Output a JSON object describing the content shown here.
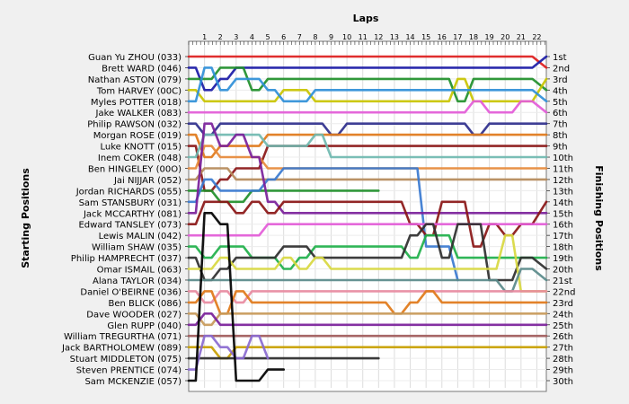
{
  "chart_data": {
    "type": "line",
    "title": "Laps",
    "ylabel_left": "Starting Positions",
    "ylabel_right": "Finishing Positions",
    "laps": [
      "1",
      "2",
      "3",
      "4",
      "5",
      "6",
      "7",
      "8",
      "9",
      "10",
      "11",
      "12",
      "13",
      "14",
      "15",
      "16",
      "17",
      "18",
      "19",
      "20",
      "21",
      "22"
    ],
    "positions": [
      "1st",
      "2nd",
      "3rd",
      "4th",
      "5th",
      "6th",
      "7th",
      "8th",
      "9th",
      "10th",
      "11th",
      "12th",
      "13th",
      "14th",
      "15th",
      "16th",
      "17th",
      "18th",
      "19th",
      "20th",
      "21st",
      "22nd",
      "23rd",
      "24th",
      "25th",
      "26th",
      "27th",
      "28th",
      "29th",
      "30th"
    ],
    "ylim": [
      1,
      30
    ],
    "grid": true,
    "series": [
      {
        "name": "Guan Yu ZHOU (033)",
        "color": "#dd1c1c",
        "values": [
          1,
          1,
          1,
          1,
          1,
          1,
          1,
          1,
          1,
          1,
          1,
          1,
          1,
          1,
          1,
          1,
          1,
          1,
          1,
          1,
          1,
          1,
          2
        ]
      },
      {
        "name": "Brett WARD (046)",
        "color": "#1a1aa6",
        "values": [
          2,
          4,
          3,
          2,
          2,
          2,
          2,
          2,
          2,
          2,
          2,
          2,
          2,
          2,
          2,
          2,
          2,
          2,
          2,
          2,
          2,
          2,
          1
        ]
      },
      {
        "name": "Nathan ASTON (079)",
        "color": "#1f8f2a",
        "values": [
          3,
          3,
          2,
          2,
          4,
          3,
          3,
          3,
          3,
          3,
          3,
          3,
          3,
          3,
          3,
          3,
          3,
          5,
          3,
          3,
          3,
          3,
          4
        ]
      },
      {
        "name": "Tom HARVEY (00C)",
        "color": "#c9c400",
        "values": [
          4,
          5,
          5,
          5,
          5,
          5,
          4,
          4,
          5,
          5,
          5,
          5,
          5,
          5,
          5,
          5,
          5,
          3,
          5,
          5,
          5,
          5,
          3
        ]
      },
      {
        "name": "Myles POTTER (018)",
        "color": "#2f8fd8",
        "values": [
          5,
          2,
          4,
          3,
          3,
          4,
          5,
          5,
          4,
          4,
          4,
          4,
          4,
          4,
          4,
          4,
          4,
          4,
          4,
          4,
          4,
          4,
          5
        ]
      },
      {
        "name": "Jake WALKER (083)",
        "color": "#e35bd8",
        "values": [
          6,
          6,
          6,
          6,
          6,
          6,
          6,
          6,
          6,
          6,
          6,
          6,
          6,
          6,
          6,
          6,
          6,
          6,
          5,
          6,
          6,
          5,
          6
        ]
      },
      {
        "name": "Philip RAWSON (032)",
        "color": "#2e2e8c",
        "values": [
          7,
          8,
          7,
          7,
          7,
          7,
          7,
          7,
          7,
          8,
          7,
          7,
          7,
          7,
          7,
          7,
          7,
          7,
          8,
          7,
          7,
          7,
          7
        ]
      },
      {
        "name": "Morgan ROSE (019)",
        "color": "#e07818",
        "values": [
          8,
          10,
          9,
          9,
          9,
          8,
          8,
          8,
          8,
          8,
          8,
          8,
          8,
          8,
          8,
          8,
          8,
          8,
          8,
          8,
          8,
          8,
          8
        ]
      },
      {
        "name": "Luke KNOTT (015)",
        "color": "#8a1515",
        "values": [
          9,
          13,
          12,
          11,
          11,
          9,
          9,
          9,
          9,
          9,
          9,
          9,
          9,
          9,
          9,
          9,
          9,
          9,
          9,
          9,
          9,
          9,
          9
        ]
      },
      {
        "name": "Inem COKER (048)",
        "color": "#6fb8b0",
        "values": [
          10,
          8,
          8,
          8,
          8,
          9,
          9,
          9,
          8,
          10,
          10,
          10,
          10,
          10,
          10,
          10,
          10,
          10,
          10,
          10,
          10,
          10,
          10
        ]
      },
      {
        "name": "Ben HINGELEY (00O)",
        "color": "#e78a3a",
        "values": [
          11,
          9,
          10,
          10,
          10,
          11,
          11,
          11,
          11,
          11,
          11,
          11,
          11,
          11,
          11,
          11,
          11,
          11,
          11,
          11,
          11,
          11,
          11
        ]
      },
      {
        "name": "Jai NIJJAR (052)",
        "color": "#b58a5a",
        "values": [
          12,
          11,
          11,
          12,
          12,
          12,
          12,
          12,
          12,
          12,
          12,
          12,
          12,
          12,
          12,
          12,
          12,
          12,
          12,
          12,
          12,
          12,
          12
        ]
      },
      {
        "name": "Jordan RICHARDS (055)",
        "color": "#1f8f2a",
        "values": [
          13,
          13,
          14,
          14,
          13,
          13,
          13,
          13,
          13,
          13,
          13,
          13,
          13
        ]
      },
      {
        "name": "Sam STANSBURY (031)",
        "color": "#3a7ad0",
        "values": [
          14,
          12,
          13,
          13,
          13,
          12,
          11,
          11,
          11,
          11,
          11,
          11,
          11,
          11,
          11,
          18,
          18,
          21
        ]
      },
      {
        "name": "Jack MCCARTHY (081)",
        "color": "#7a1f9a",
        "values": [
          15,
          7,
          9,
          8,
          10,
          14,
          15,
          15,
          15,
          15,
          15,
          15,
          15,
          15,
          15,
          15,
          15,
          15,
          15,
          15,
          15,
          15,
          15
        ]
      },
      {
        "name": "Edward TANSLEY (073)",
        "color": "#8a1515",
        "values": [
          16,
          14,
          14,
          15,
          14,
          15,
          14,
          14,
          14,
          14,
          14,
          14,
          14,
          14,
          16,
          17,
          14,
          14,
          18,
          16,
          17,
          16,
          14
        ]
      },
      {
        "name": "Lewis MALIN (042)",
        "color": "#e35bd8",
        "values": [
          17,
          17,
          17,
          17,
          17,
          16,
          16,
          16,
          16,
          16,
          16,
          16,
          16,
          16,
          16,
          16,
          16,
          16,
          16,
          16,
          16,
          16,
          16
        ]
      },
      {
        "name": "William SHAW (035)",
        "color": "#1fb04a",
        "values": [
          18,
          19,
          18,
          18,
          19,
          19,
          20,
          19,
          18,
          18,
          18,
          18,
          18,
          18,
          19,
          17,
          17,
          19,
          19,
          19,
          19,
          19,
          19
        ]
      },
      {
        "name": "Philip HAMPRECHT (037)",
        "color": "#2e2e2e",
        "values": [
          19,
          21,
          20,
          19,
          19,
          19,
          18,
          18,
          19,
          19,
          19,
          19,
          19,
          19,
          17,
          16,
          19,
          16,
          16,
          21,
          21,
          19,
          20
        ]
      },
      {
        "name": "Omar ISMAIL (063)",
        "color": "#d8d840",
        "values": [
          20,
          20,
          19,
          20,
          20,
          20,
          19,
          20,
          19,
          20,
          20,
          20,
          20,
          20,
          20,
          20,
          20,
          20,
          20,
          20,
          17,
          22,
          22
        ]
      },
      {
        "name": "Alana TAYLOR (034)",
        "color": "#5a8a8a",
        "values": [
          21,
          21,
          21,
          21,
          21,
          21,
          21,
          21,
          21,
          21,
          21,
          21,
          21,
          21,
          21,
          21,
          21,
          21,
          21,
          21,
          22,
          20,
          21
        ]
      },
      {
        "name": "Daniel O'BEIRNE (036)",
        "color": "#e88aa0",
        "values": [
          22,
          23,
          22,
          23,
          22,
          22,
          22,
          22,
          22,
          22,
          22,
          22,
          22,
          22,
          22,
          22,
          22,
          22,
          22,
          22,
          22,
          22,
          22
        ]
      },
      {
        "name": "Ben BLICK (086)",
        "color": "#e07818",
        "values": [
          23,
          22,
          24,
          22,
          23,
          23,
          23,
          23,
          23,
          23,
          23,
          23,
          23,
          24,
          23,
          22,
          23,
          23,
          23,
          23,
          23,
          23,
          23
        ]
      },
      {
        "name": "Dave WOODER (027)",
        "color": "#c89a5a",
        "values": [
          24,
          25,
          24,
          24,
          24,
          24,
          24,
          24,
          24,
          24,
          24,
          24,
          24,
          24,
          24,
          24,
          24,
          24,
          24,
          24,
          24,
          24,
          24
        ]
      },
      {
        "name": "Glen RUPP (040)",
        "color": "#7a1f9a",
        "values": [
          25,
          24,
          25,
          25,
          25,
          25,
          25,
          25,
          25,
          25,
          25,
          25,
          25,
          25,
          25,
          25,
          25,
          25,
          25,
          25,
          25,
          25,
          25
        ]
      },
      {
        "name": "William TREGURTHA (071)",
        "color": "#a05a5a",
        "values": [
          26,
          26,
          26,
          26,
          26,
          26,
          26,
          26,
          26,
          26,
          26,
          26,
          26,
          26,
          26,
          26,
          26,
          26,
          26,
          26,
          26,
          26,
          26
        ]
      },
      {
        "name": "Jack BARTHOLOMEW (089)",
        "color": "#c8a000",
        "values": [
          27,
          27,
          28,
          27,
          27,
          27,
          27,
          27,
          27,
          27,
          27,
          27,
          27,
          27,
          27,
          27,
          27,
          27,
          27,
          27,
          27,
          27,
          27
        ]
      },
      {
        "name": "Stuart MIDDLETON (075)",
        "color": "#2a2a2a",
        "values": [
          28,
          28,
          28,
          28,
          28,
          28,
          28,
          28,
          28,
          28,
          28,
          28,
          28
        ]
      },
      {
        "name": "Steven PRENTICE (074)",
        "color": "#8a6ad0",
        "values": [
          29,
          26,
          27,
          28,
          26,
          28
        ]
      },
      {
        "name": "Sam MCKENZIE (057)",
        "color": "#000000",
        "values": [
          30,
          15,
          16,
          30,
          30,
          29,
          29
        ]
      }
    ]
  }
}
